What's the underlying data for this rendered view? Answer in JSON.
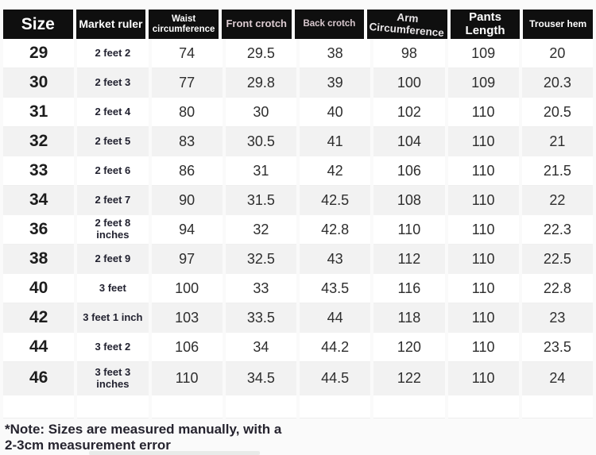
{
  "table": {
    "headers": [
      "Size",
      "Market ruler",
      "Waist circumference",
      "Front crotch",
      "Back crotch",
      "Arm Circumference",
      "Pants Length",
      "Trouser hem"
    ],
    "rows": [
      [
        "29",
        "2 feet 2",
        "74",
        "29.5",
        "38",
        "98",
        "109",
        "20"
      ],
      [
        "30",
        "2 feet 3",
        "77",
        "29.8",
        "39",
        "100",
        "109",
        "20.3"
      ],
      [
        "31",
        "2 feet 4",
        "80",
        "30",
        "40",
        "102",
        "110",
        "20.5"
      ],
      [
        "32",
        "2 feet 5",
        "83",
        "30.5",
        "41",
        "104",
        "110",
        "21"
      ],
      [
        "33",
        "2 feet 6",
        "86",
        "31",
        "42",
        "106",
        "110",
        "21.5"
      ],
      [
        "34",
        "2 feet 7",
        "90",
        "31.5",
        "42.5",
        "108",
        "110",
        "22"
      ],
      [
        "36",
        "2 feet 8 inches",
        "94",
        "32",
        "42.8",
        "110",
        "110",
        "22.3"
      ],
      [
        "38",
        "2 feet 9",
        "97",
        "32.5",
        "43",
        "112",
        "110",
        "22.5"
      ],
      [
        "40",
        "3 feet",
        "100",
        "33",
        "43.5",
        "116",
        "110",
        "22.8"
      ],
      [
        "42",
        "3 feet 1 inch",
        "103",
        "33.5",
        "44",
        "118",
        "110",
        "23"
      ],
      [
        "44",
        "3 feet 2",
        "106",
        "34",
        "44.2",
        "120",
        "110",
        "23.5"
      ],
      [
        "46",
        "3 feet 3 inches",
        "110",
        "34.5",
        "44.5",
        "122",
        "110",
        "24"
      ]
    ]
  },
  "note": {
    "line1": "*Note: Sizes are measured manually, with a",
    "line2": "2-3cm measurement error"
  },
  "colors": {
    "header_bg": "#0f0f0f",
    "header_text": "#ffffff",
    "alt_row_bg": "#f2f2f2",
    "note_text": "#26242f"
  },
  "chart_data": {
    "type": "table",
    "title": "",
    "columns": [
      "Size",
      "Market ruler",
      "Waist circumference",
      "Front crotch",
      "Back crotch",
      "Arm Circumference",
      "Pants Length",
      "Trouser hem"
    ],
    "rows": [
      [
        "29",
        "2 feet 2",
        74,
        29.5,
        38,
        98,
        109,
        20
      ],
      [
        "30",
        "2 feet 3",
        77,
        29.8,
        39,
        100,
        109,
        20.3
      ],
      [
        "31",
        "2 feet 4",
        80,
        30,
        40,
        102,
        110,
        20.5
      ],
      [
        "32",
        "2 feet 5",
        83,
        30.5,
        41,
        104,
        110,
        21
      ],
      [
        "33",
        "2 feet 6",
        86,
        31,
        42,
        106,
        110,
        21.5
      ],
      [
        "34",
        "2 feet 7",
        90,
        31.5,
        42.5,
        108,
        110,
        22
      ],
      [
        "36",
        "2 feet 8 inches",
        94,
        32,
        42.8,
        110,
        110,
        22.3
      ],
      [
        "38",
        "2 feet 9",
        97,
        32.5,
        43,
        112,
        110,
        22.5
      ],
      [
        "40",
        "3 feet",
        100,
        33,
        43.5,
        116,
        110,
        22.8
      ],
      [
        "42",
        "3 feet 1 inch",
        103,
        33.5,
        44,
        118,
        110,
        23
      ],
      [
        "44",
        "3 feet 2",
        106,
        34,
        44.2,
        120,
        110,
        23.5
      ],
      [
        "46",
        "3 feet 3 inches",
        110,
        34.5,
        44.5,
        122,
        110,
        24
      ]
    ],
    "annotations": [
      "*Note: Sizes are measured manually, with a 2-3cm measurement error"
    ]
  }
}
